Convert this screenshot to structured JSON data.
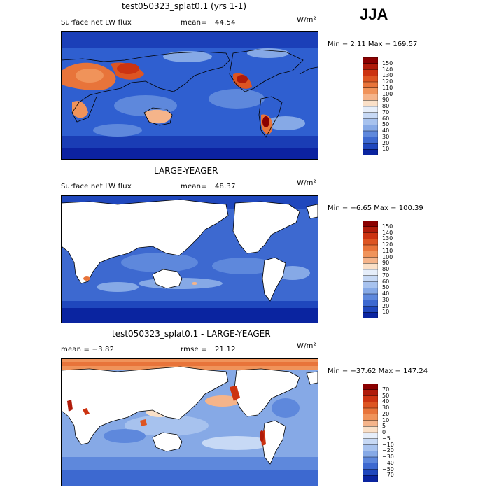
{
  "season": "JJA",
  "panels": [
    {
      "title": "test050323_splat0.1 (yrs 1-1)",
      "left_label": "Surface net LW flux",
      "stat_label": "mean=",
      "stat_value": "44.54",
      "units": "W/m²",
      "minmax": "Min =    2.11 Max = 169.57"
    },
    {
      "title": "LARGE-YEAGER",
      "left_label": "Surface net LW flux",
      "stat_label": "mean=",
      "stat_value": "48.37",
      "units": "W/m²",
      "minmax": "Min =  −6.65 Max = 100.39"
    },
    {
      "title": "test050323_splat0.1 - LARGE-YEAGER",
      "left_label": "mean =   −3.82",
      "stat_label": "rmse =",
      "stat_value": "21.12",
      "units": "W/m²",
      "minmax": "Min = −37.62 Max = 147.24"
    }
  ],
  "chart_data": [
    {
      "type": "heatmap",
      "title": "test050323_splat0.1 (yrs 1-1)",
      "variable": "Surface net LW flux",
      "units": "W/m²",
      "mean": 44.54,
      "min": 2.11,
      "max": 169.57,
      "colorbar_levels": [
        "150",
        "140",
        "130",
        "120",
        "110",
        "100",
        "90",
        "80",
        "70",
        "60",
        "50",
        "40",
        "30",
        "20",
        "10"
      ],
      "colorbar_colors": [
        "#8b0000",
        "#b01b0a",
        "#cc3311",
        "#dd5522",
        "#e8743a",
        "#f0935a",
        "#f5b48a",
        "#fae0c8",
        "#e6eefa",
        "#c7d9f5",
        "#a7c2ee",
        "#86a9e6",
        "#5e88dc",
        "#3d69d0",
        "#1f47bd",
        "#0a24a0"
      ]
    },
    {
      "type": "heatmap",
      "title": "LARGE-YEAGER",
      "variable": "Surface net LW flux",
      "units": "W/m²",
      "mean": 48.37,
      "min": -6.65,
      "max": 100.39,
      "colorbar_levels": [
        "150",
        "140",
        "130",
        "120",
        "110",
        "100",
        "90",
        "80",
        "70",
        "60",
        "50",
        "40",
        "30",
        "20",
        "10"
      ],
      "colorbar_colors": [
        "#8b0000",
        "#b01b0a",
        "#cc3311",
        "#dd5522",
        "#e8743a",
        "#f0935a",
        "#f5b48a",
        "#fae0c8",
        "#e6eefa",
        "#c7d9f5",
        "#a7c2ee",
        "#86a9e6",
        "#5e88dc",
        "#3d69d0",
        "#1f47bd",
        "#0a24a0"
      ]
    },
    {
      "type": "heatmap",
      "title": "test050323_splat0.1 - LARGE-YEAGER",
      "units": "W/m²",
      "mean": -3.82,
      "rmse": 21.12,
      "min": -37.62,
      "max": 147.24,
      "colorbar_levels": [
        "70",
        "50",
        "40",
        "30",
        "20",
        "10",
        "5",
        "0",
        "−5",
        "−10",
        "−20",
        "−30",
        "−40",
        "−50",
        "−70"
      ],
      "colorbar_colors": [
        "#8b0000",
        "#b01b0a",
        "#cc3311",
        "#dd5522",
        "#e8743a",
        "#f0935a",
        "#f5b48a",
        "#fae0c8",
        "#e6eefa",
        "#c7d9f5",
        "#a7c2ee",
        "#86a9e6",
        "#5e88dc",
        "#3d69d0",
        "#1f47bd",
        "#0a24a0"
      ]
    }
  ]
}
